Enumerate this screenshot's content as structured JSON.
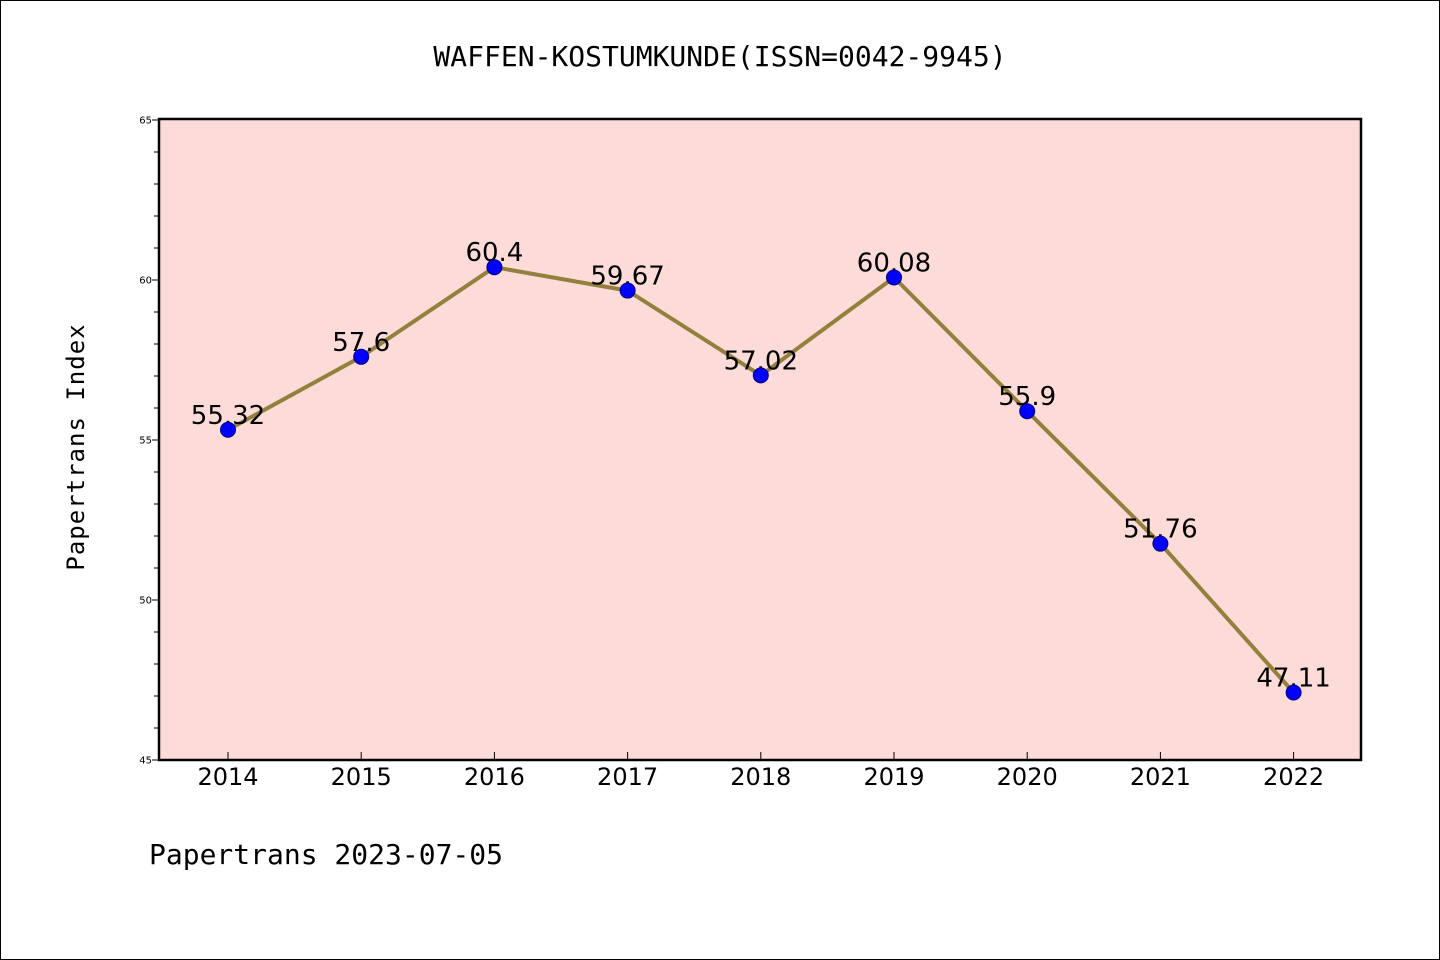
{
  "chart_data": {
    "type": "line",
    "title": "WAFFEN-KOSTUMKUNDE(ISSN=0042-9945)",
    "xlabel": "",
    "ylabel": "Papertrans Index",
    "footer": "Papertrans 2023-07-05",
    "categories": [
      "2014",
      "2015",
      "2016",
      "2017",
      "2018",
      "2019",
      "2020",
      "2021",
      "2022"
    ],
    "values": [
      55.32,
      57.6,
      60.4,
      59.67,
      57.02,
      60.08,
      55.9,
      51.76,
      47.11
    ],
    "value_labels": [
      "55.32",
      "57.6",
      "60.4",
      "59.67",
      "57.02",
      "60.08",
      "55.9",
      "51.76",
      "47.11"
    ],
    "ylim": [
      45,
      65
    ],
    "yticks": [
      45,
      50,
      55,
      60,
      65
    ],
    "ytick_labels": [
      "45",
      "50",
      "55",
      "60",
      "65"
    ],
    "grid": false,
    "legend": "none",
    "colors": {
      "plot_background": "#fddbd8",
      "line": "#94803c",
      "marker_fill": "#0000ff",
      "marker_edge": "#000080",
      "axes": "#000000"
    }
  }
}
